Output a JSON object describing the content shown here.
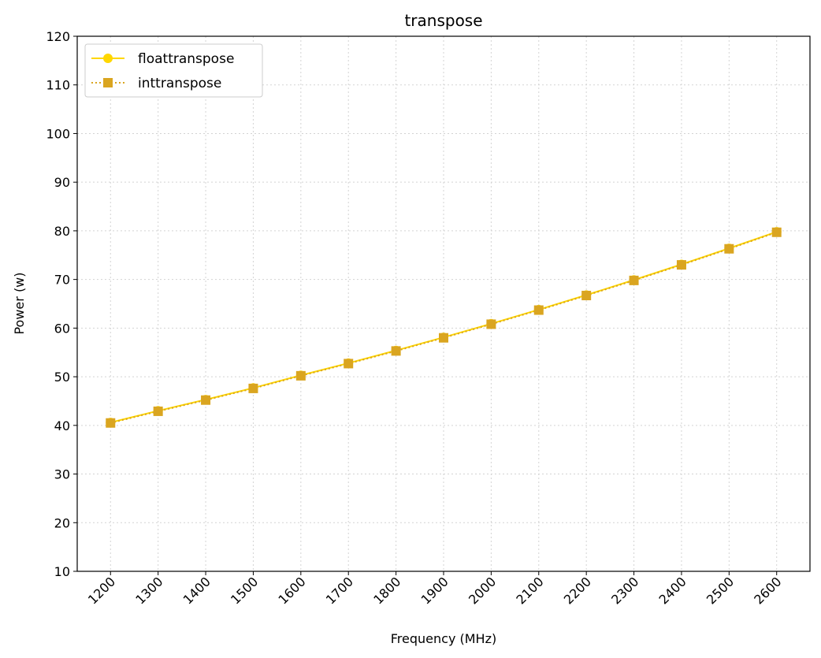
{
  "chart_data": {
    "type": "line",
    "title": "transpose",
    "xlabel": "Frequency (MHz)",
    "ylabel": "Power (w)",
    "x": [
      1200,
      1300,
      1400,
      1500,
      1600,
      1700,
      1800,
      1900,
      2000,
      2100,
      2200,
      2300,
      2400,
      2500,
      2600
    ],
    "x_tick_labels": [
      "1200",
      "1300",
      "1400",
      "1500",
      "1600",
      "1700",
      "1800",
      "1900",
      "2000",
      "2100",
      "2200",
      "2300",
      "2400",
      "2500",
      "2600"
    ],
    "ylim": [
      10,
      120
    ],
    "y_ticks": [
      10,
      20,
      30,
      40,
      50,
      60,
      70,
      80,
      90,
      100,
      110,
      120
    ],
    "grid": true,
    "legend_position": "top-left",
    "series": [
      {
        "name": "floattransposе",
        "color": "#FFD700",
        "line_style": "solid",
        "marker": "circle",
        "values": [
          40.6,
          43.0,
          45.3,
          47.7,
          50.3,
          52.8,
          55.4,
          58.1,
          60.9,
          63.8,
          66.8,
          69.9,
          73.1,
          76.4,
          79.8
        ]
      },
      {
        "name": "inttranspose",
        "color": "#DAA520",
        "line_style": "dotted",
        "marker": "square",
        "values": [
          40.5,
          42.9,
          45.2,
          47.6,
          50.2,
          52.7,
          55.3,
          58.0,
          60.8,
          63.7,
          66.7,
          69.8,
          73.0,
          76.3,
          79.7
        ]
      }
    ]
  }
}
